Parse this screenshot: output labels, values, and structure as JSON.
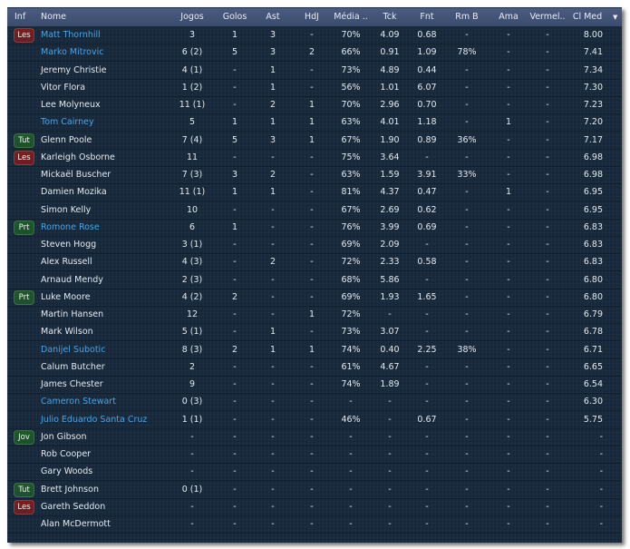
{
  "columns": [
    "Inf",
    "Nome",
    "Jogos",
    "Golos",
    "Ast",
    "HdJ",
    "Média ..",
    "Tck",
    "Fnt",
    "Rm B",
    "Ama",
    "Vermel..",
    "Cl Med"
  ],
  "sort_indicator": "▼",
  "badge_colors": {
    "Les": "#7c1d1f",
    "Tut": "#1e5a2a",
    "Prt": "#1e5a2a",
    "Jov": "#1e5a2a"
  },
  "link_color": "#4ba3e6",
  "rows": [
    {
      "inf": "Les",
      "name": "Matt Thornhill",
      "link": true,
      "stats": [
        "3",
        "1",
        "3",
        "-",
        "70%",
        "4.09",
        "0.68",
        "-",
        "-",
        "-",
        "8.00"
      ]
    },
    {
      "inf": "",
      "name": "Marko Mitrovic",
      "link": true,
      "stats": [
        "6 (2)",
        "5",
        "3",
        "2",
        "66%",
        "0.91",
        "1.09",
        "78%",
        "-",
        "-",
        "7.41"
      ]
    },
    {
      "inf": "",
      "name": "Jeremy Christie",
      "link": false,
      "stats": [
        "4 (1)",
        "-",
        "1",
        "-",
        "73%",
        "4.89",
        "0.44",
        "-",
        "-",
        "-",
        "7.34"
      ]
    },
    {
      "inf": "",
      "name": "Vitor Flora",
      "link": false,
      "stats": [
        "1 (2)",
        "-",
        "1",
        "-",
        "56%",
        "1.01",
        "6.07",
        "-",
        "-",
        "-",
        "7.30"
      ]
    },
    {
      "inf": "",
      "name": "Lee Molyneux",
      "link": false,
      "stats": [
        "11 (1)",
        "-",
        "2",
        "1",
        "70%",
        "2.96",
        "0.70",
        "-",
        "-",
        "-",
        "7.23"
      ]
    },
    {
      "inf": "",
      "name": "Tom Cairney",
      "link": true,
      "stats": [
        "5",
        "1",
        "1",
        "1",
        "63%",
        "4.01",
        "1.18",
        "-",
        "1",
        "-",
        "7.20"
      ]
    },
    {
      "inf": "Tut",
      "name": "Glenn Poole",
      "link": false,
      "stats": [
        "7 (4)",
        "5",
        "3",
        "1",
        "67%",
        "1.90",
        "0.89",
        "36%",
        "-",
        "-",
        "7.17"
      ]
    },
    {
      "inf": "Les",
      "name": "Karleigh Osborne",
      "link": false,
      "stats": [
        "11",
        "-",
        "-",
        "-",
        "75%",
        "3.64",
        "-",
        "-",
        "-",
        "-",
        "6.98"
      ]
    },
    {
      "inf": "",
      "name": "Mickaël Buscher",
      "link": false,
      "stats": [
        "7 (3)",
        "3",
        "2",
        "-",
        "63%",
        "1.59",
        "3.91",
        "33%",
        "-",
        "-",
        "6.98"
      ]
    },
    {
      "inf": "",
      "name": "Damien Mozika",
      "link": false,
      "stats": [
        "11 (1)",
        "1",
        "1",
        "-",
        "81%",
        "4.37",
        "0.47",
        "-",
        "1",
        "-",
        "6.95"
      ]
    },
    {
      "inf": "",
      "name": "Simon Kelly",
      "link": false,
      "stats": [
        "10",
        "-",
        "-",
        "-",
        "67%",
        "2.69",
        "0.62",
        "-",
        "-",
        "-",
        "6.95"
      ]
    },
    {
      "inf": "Prt",
      "name": "Romone Rose",
      "link": true,
      "stats": [
        "6",
        "1",
        "-",
        "-",
        "76%",
        "3.99",
        "0.69",
        "-",
        "-",
        "-",
        "6.83"
      ]
    },
    {
      "inf": "",
      "name": "Steven Hogg",
      "link": false,
      "stats": [
        "3 (1)",
        "-",
        "-",
        "-",
        "69%",
        "2.09",
        "-",
        "-",
        "-",
        "-",
        "6.83"
      ]
    },
    {
      "inf": "",
      "name": "Alex Russell",
      "link": false,
      "stats": [
        "4 (3)",
        "-",
        "2",
        "-",
        "72%",
        "2.33",
        "0.58",
        "-",
        "-",
        "-",
        "6.83"
      ]
    },
    {
      "inf": "",
      "name": "Arnaud Mendy",
      "link": false,
      "stats": [
        "2 (3)",
        "-",
        "-",
        "-",
        "68%",
        "5.86",
        "-",
        "-",
        "-",
        "-",
        "6.80"
      ]
    },
    {
      "inf": "Prt",
      "name": "Luke Moore",
      "link": false,
      "stats": [
        "4 (2)",
        "2",
        "-",
        "-",
        "69%",
        "1.93",
        "1.65",
        "-",
        "-",
        "-",
        "6.80"
      ]
    },
    {
      "inf": "",
      "name": "Martin Hansen",
      "link": false,
      "stats": [
        "12",
        "-",
        "-",
        "1",
        "72%",
        "-",
        "-",
        "-",
        "-",
        "-",
        "6.79"
      ]
    },
    {
      "inf": "",
      "name": "Mark Wilson",
      "link": false,
      "stats": [
        "5 (1)",
        "-",
        "1",
        "-",
        "73%",
        "3.07",
        "-",
        "-",
        "-",
        "-",
        "6.78"
      ]
    },
    {
      "inf": "",
      "name": "Danijel Subotic",
      "link": true,
      "stats": [
        "8 (3)",
        "2",
        "1",
        "1",
        "74%",
        "0.40",
        "2.25",
        "38%",
        "-",
        "-",
        "6.71"
      ]
    },
    {
      "inf": "",
      "name": "Calum Butcher",
      "link": false,
      "stats": [
        "2",
        "-",
        "-",
        "-",
        "61%",
        "4.67",
        "-",
        "-",
        "-",
        "-",
        "6.65"
      ]
    },
    {
      "inf": "",
      "name": "James Chester",
      "link": false,
      "stats": [
        "9",
        "-",
        "-",
        "-",
        "74%",
        "1.89",
        "-",
        "-",
        "-",
        "-",
        "6.54"
      ]
    },
    {
      "inf": "",
      "name": "Cameron Stewart",
      "link": true,
      "stats": [
        "0 (3)",
        "-",
        "-",
        "-",
        "-",
        "-",
        "-",
        "-",
        "-",
        "-",
        "6.30"
      ]
    },
    {
      "inf": "",
      "name": "Julio Eduardo Santa Cruz",
      "link": true,
      "stats": [
        "1 (1)",
        "-",
        "-",
        "-",
        "46%",
        "-",
        "0.67",
        "-",
        "-",
        "-",
        "5.75"
      ]
    },
    {
      "inf": "Jov",
      "name": "Jon Gibson",
      "link": false,
      "stats": [
        "-",
        "-",
        "-",
        "-",
        "-",
        "-",
        "-",
        "-",
        "-",
        "-",
        "-"
      ]
    },
    {
      "inf": "",
      "name": "Rob Cooper",
      "link": false,
      "stats": [
        "-",
        "-",
        "-",
        "-",
        "-",
        "-",
        "-",
        "-",
        "-",
        "-",
        "-"
      ]
    },
    {
      "inf": "",
      "name": "Gary Woods",
      "link": false,
      "stats": [
        "-",
        "-",
        "-",
        "-",
        "-",
        "-",
        "-",
        "-",
        "-",
        "-",
        "-"
      ]
    },
    {
      "inf": "Tut",
      "name": "Brett Johnson",
      "link": false,
      "stats": [
        "0 (1)",
        "-",
        "-",
        "-",
        "-",
        "-",
        "-",
        "-",
        "-",
        "-",
        "-"
      ]
    },
    {
      "inf": "Les",
      "name": "Gareth Seddon",
      "link": false,
      "stats": [
        "-",
        "-",
        "-",
        "-",
        "-",
        "-",
        "-",
        "-",
        "-",
        "-",
        "-"
      ]
    },
    {
      "inf": "",
      "name": "Alan McDermott",
      "link": false,
      "stats": [
        "-",
        "-",
        "-",
        "-",
        "-",
        "-",
        "-",
        "-",
        "-",
        "-",
        "-"
      ]
    }
  ]
}
